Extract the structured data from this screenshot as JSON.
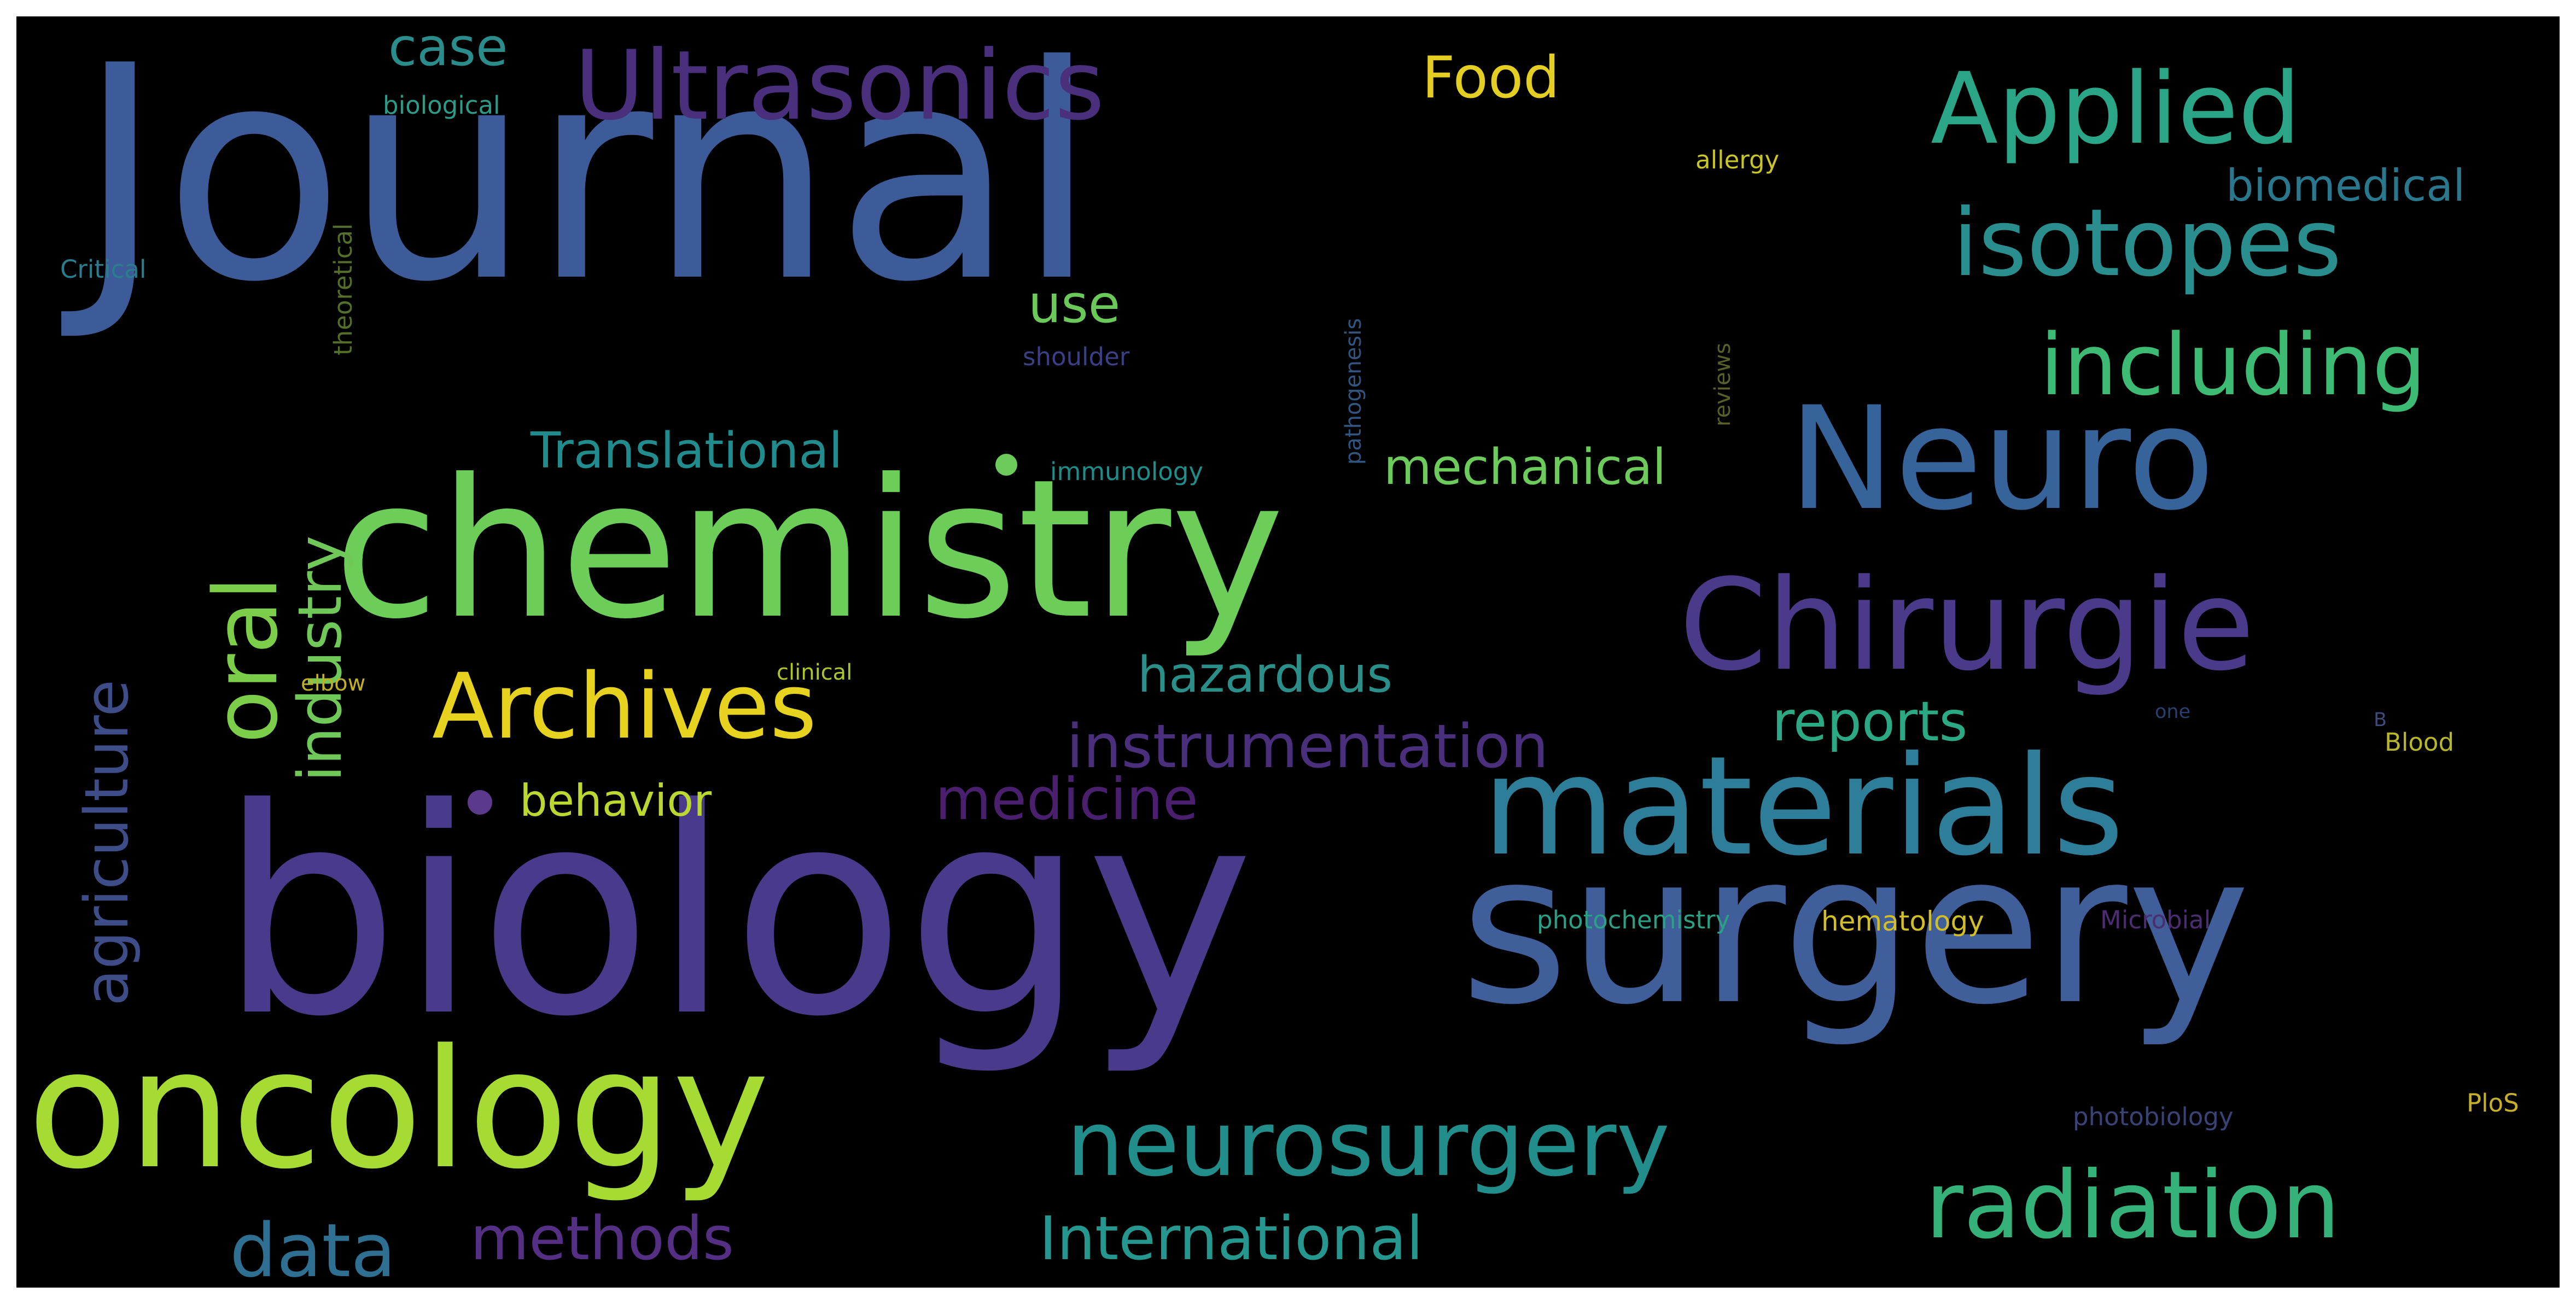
{
  "background": "#000000",
  "palette": {
    "purple": "#482878",
    "indigo": "#3E4A89",
    "blue": "#31688E",
    "teal": "#26828E",
    "green": "#1F9E89",
    "mint": "#35B779",
    "lime": "#6ECE58",
    "yellowgreen": "#B5DE2B",
    "yellow": "#E8D21F"
  },
  "words": [
    {
      "text": "Journal",
      "color": "#3E5B99",
      "vertical": false
    },
    {
      "text": "biology",
      "color": "#4A3A8C",
      "vertical": false
    },
    {
      "text": "chemistry",
      "color": "#6DCD59",
      "vertical": false
    },
    {
      "text": "surgery",
      "color": "#3F5E9A",
      "vertical": false
    },
    {
      "text": "oncology",
      "color": "#A6DB33",
      "vertical": false
    },
    {
      "text": "materials",
      "color": "#2E7E99",
      "vertical": false
    },
    {
      "text": "Neuro",
      "color": "#36639A",
      "vertical": false
    },
    {
      "text": "Chirurgie",
      "color": "#4B3A8A",
      "vertical": false
    },
    {
      "text": "Ultrasonics",
      "color": "#4A2F7C",
      "vertical": false
    },
    {
      "text": "Applied",
      "color": "#2AA687",
      "vertical": false
    },
    {
      "text": "isotopes",
      "color": "#2A8E8F",
      "vertical": false
    },
    {
      "text": "including",
      "color": "#3DBB74",
      "vertical": false
    },
    {
      "text": "neurosurgery",
      "color": "#218E8C",
      "vertical": false
    },
    {
      "text": "radiation",
      "color": "#34B27A",
      "vertical": false
    },
    {
      "text": "Archives",
      "color": "#E7D21F",
      "vertical": false
    },
    {
      "text": "oral",
      "color": "#7CCD4A",
      "vertical": true
    },
    {
      "text": "industry",
      "color": "#6FC858",
      "vertical": true
    },
    {
      "text": "agriculture",
      "color": "#3E4C87",
      "vertical": true
    },
    {
      "text": "instrumentation",
      "color": "#4A2F7C",
      "vertical": false
    },
    {
      "text": "International",
      "color": "#25978E",
      "vertical": false
    },
    {
      "text": "data",
      "color": "#2F6F91",
      "vertical": false
    },
    {
      "text": "methods",
      "color": "#552F84",
      "vertical": false
    },
    {
      "text": "medicine",
      "color": "#4A1F6E",
      "vertical": false
    },
    {
      "text": "reports",
      "color": "#2BA985",
      "vertical": false
    },
    {
      "text": "hazardous",
      "color": "#2A8F88",
      "vertical": false
    },
    {
      "text": "mechanical",
      "color": "#6CCB5B",
      "vertical": false
    },
    {
      "text": "Translational",
      "color": "#218C8D",
      "vertical": false
    },
    {
      "text": "behavior",
      "color": "#BBD831",
      "vertical": false
    },
    {
      "text": "Food",
      "color": "#E3CE21",
      "vertical": false
    },
    {
      "text": "case",
      "color": "#2B8C8C",
      "vertical": false
    },
    {
      "text": "use",
      "color": "#6BC95A",
      "vertical": false
    },
    {
      "text": "biomedical",
      "color": "#29788E",
      "vertical": false
    },
    {
      "text": "allergy",
      "color": "#C9C524",
      "vertical": false
    },
    {
      "text": "biological",
      "color": "#2C9B88",
      "vertical": false
    },
    {
      "text": "Critical",
      "color": "#2A7D8C",
      "vertical": false
    },
    {
      "text": "theoretical",
      "color": "#556E2A",
      "vertical": true
    },
    {
      "text": "shoulder",
      "color": "#3D3F84",
      "vertical": false
    },
    {
      "text": "pathogenesis",
      "color": "#31557F",
      "vertical": true
    },
    {
      "text": "reviews",
      "color": "#5A5F2A",
      "vertical": true
    },
    {
      "text": "immunology",
      "color": "#1F8E8A",
      "vertical": false
    },
    {
      "text": "elbow",
      "color": "#C0B124",
      "vertical": false
    },
    {
      "text": "clinical",
      "color": "#AFC52A",
      "vertical": false
    },
    {
      "text": "one",
      "color": "#2A3F6E",
      "vertical": false
    },
    {
      "text": "Blood",
      "color": "#B8B62A",
      "vertical": false
    },
    {
      "text": "photochemistry",
      "color": "#2AA084",
      "vertical": false
    },
    {
      "text": "hematology",
      "color": "#D2BE26",
      "vertical": false
    },
    {
      "text": "Microbial",
      "color": "#4C2D70",
      "vertical": false
    },
    {
      "text": "photobiology",
      "color": "#3B4275",
      "vertical": false
    },
    {
      "text": "PloS",
      "color": "#C7B027",
      "vertical": false
    },
    {
      "text": "B",
      "color": "#3F4A7A",
      "vertical": false
    }
  ],
  "dots": [
    {
      "name": "dot-1",
      "color": "#6CCB5B"
    },
    {
      "name": "dot-2",
      "color": "#5B3A8E"
    }
  ]
}
